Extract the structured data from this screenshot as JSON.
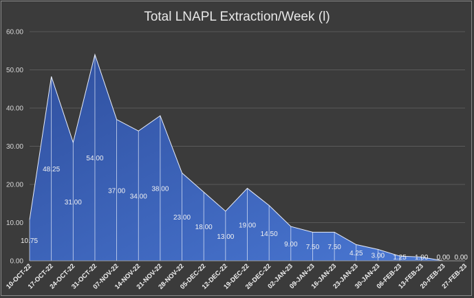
{
  "chart_data": {
    "type": "area",
    "title": "Total LNAPL Extraction/Week (l)",
    "xlabel": "",
    "ylabel": "",
    "ylim": [
      0,
      60
    ],
    "yticks": [
      "0.00",
      "10.00",
      "20.00",
      "30.00",
      "40.00",
      "50.00",
      "60.00"
    ],
    "grid": true,
    "categories": [
      "10-OCT-22",
      "17-OCT-22",
      "24-OCT-22",
      "31-OCT-22",
      "07-NOV-22",
      "14-NOV-22",
      "21-NOV-22",
      "28-NOV-22",
      "05-DEC-22",
      "12-DEC-22",
      "19-DEC-22",
      "26-DEC-22",
      "02-JAN-23",
      "09-JAN-23",
      "16-JAN-23",
      "23-JAN-23",
      "30-JAN-23",
      "06-FEB-23",
      "13-FEB-23",
      "20-FEB-23",
      "27-FEB-23"
    ],
    "values": [
      10.75,
      48.25,
      31.0,
      54.0,
      37.0,
      34.0,
      38.0,
      23.0,
      18.0,
      13.0,
      19.0,
      14.5,
      9.0,
      7.5,
      7.5,
      4.25,
      3.0,
      1.25,
      1.0,
      0.0,
      0.0
    ],
    "data_labels": [
      "10.75",
      "48.25",
      "31.00",
      "54.00",
      "37.00",
      "34.00",
      "38.00",
      "23.00",
      "18.00",
      "13.00",
      "19.00",
      "14.50",
      "9.00",
      "7.50",
      "7.50",
      "4.25",
      "3.00",
      "1.25",
      "1.00",
      "0.00",
      "0.00"
    ],
    "colors": {
      "fill_top": "#2f4f9e",
      "fill_bottom": "#4a78d4",
      "stroke": "#e8eefc",
      "grid": "#5a5a5a"
    }
  }
}
